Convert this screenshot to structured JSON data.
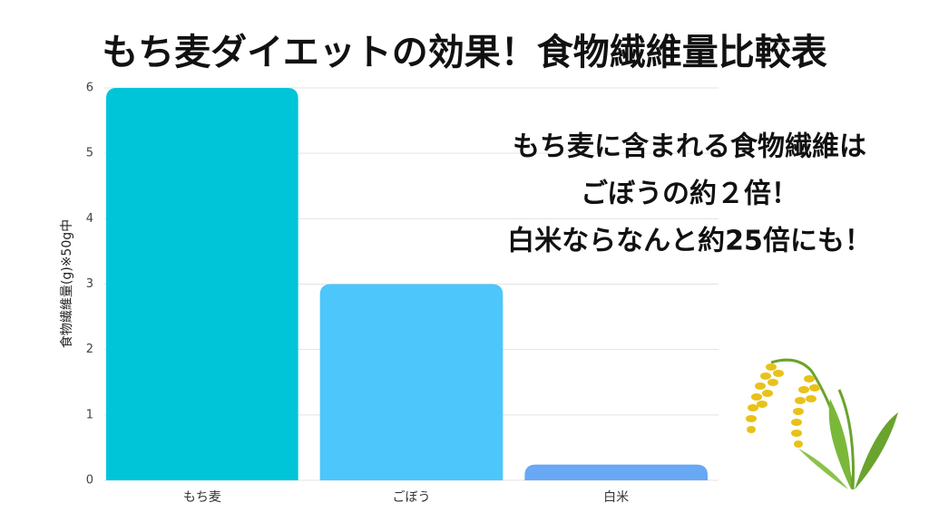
{
  "chart_data": {
    "type": "bar",
    "title": "もち麦ダイエットの効果！食物繊維量比較表",
    "y_label": "食物繊維量(g)※50g中",
    "annotations": [
      "もち麦に含まれる食物繊維は",
      "ごぼうの約２倍！",
      "白米ならなんと約25倍にも！"
    ],
    "categories": [
      "もち麦",
      "ごぼう",
      "白米"
    ],
    "values": [
      6,
      3,
      0.24
    ],
    "colors": [
      "#00c5d8",
      "#4cc6fb",
      "#69a8f4"
    ],
    "ylim": [
      0,
      6
    ],
    "yticks": [
      0,
      1,
      2,
      3,
      4,
      5,
      6
    ],
    "grid": true
  }
}
